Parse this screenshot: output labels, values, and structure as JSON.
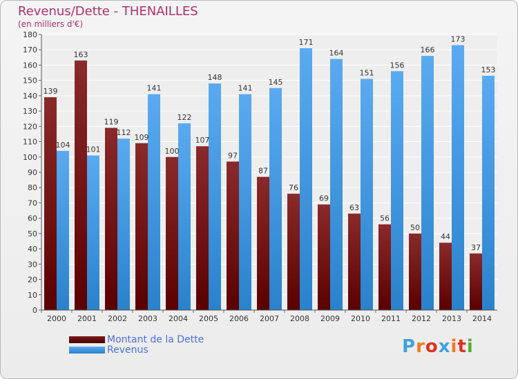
{
  "header": {
    "title": "Revenus/Dette - THENAILLES",
    "subtitle": "(en milliers d'€)"
  },
  "chart_data": {
    "type": "bar",
    "title": "Revenus/Dette - THENAILLES",
    "subtitle": "(en milliers d'€)",
    "categories": [
      "2000",
      "2001",
      "2002",
      "2003",
      "2004",
      "2005",
      "2006",
      "2007",
      "2008",
      "2009",
      "2010",
      "2011",
      "2012",
      "2013",
      "2014"
    ],
    "series": [
      {
        "name": "Montant de la Dette",
        "color": "#7a1010",
        "values": [
          139,
          163,
          119,
          109,
          100,
          107,
          97,
          87,
          76,
          69,
          63,
          56,
          50,
          44,
          37
        ]
      },
      {
        "name": "Revenus",
        "color": "#3f9ee0",
        "values": [
          104,
          101,
          112,
          141,
          122,
          148,
          141,
          145,
          171,
          164,
          151,
          156,
          166,
          173,
          153
        ]
      }
    ],
    "ylim": [
      0,
      180
    ],
    "yticks": [
      0,
      10,
      20,
      30,
      40,
      50,
      60,
      70,
      80,
      90,
      100,
      110,
      120,
      130,
      140,
      150,
      160,
      170,
      180
    ],
    "grid": true,
    "legend": "bottom-left"
  },
  "legend": {
    "items": [
      {
        "label": "Montant de la Dette",
        "color": "#7a1010"
      },
      {
        "label": "Revenus",
        "color": "#3f9ee0"
      }
    ]
  },
  "logo": {
    "letters": [
      "P",
      "r",
      "o",
      "x",
      "i",
      "t",
      "i"
    ],
    "colors": [
      "#3fa0e0",
      "#f07820",
      "#e03020",
      "#3fa0e0",
      "#f07820",
      "#e03020",
      "#50b030"
    ]
  }
}
